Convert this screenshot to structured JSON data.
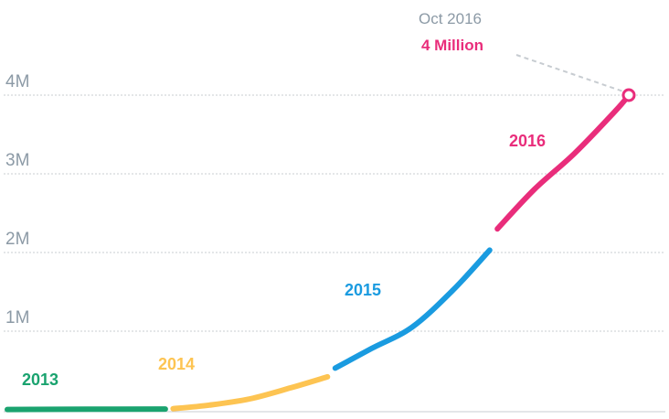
{
  "chart_data": {
    "type": "line",
    "title": "",
    "xlabel": "",
    "ylabel": "",
    "ylim": [
      0,
      4500000
    ],
    "y_ticks": [
      {
        "value": 1000000,
        "label": "1M"
      },
      {
        "value": 2000000,
        "label": "2M"
      },
      {
        "value": 3000000,
        "label": "3M"
      },
      {
        "value": 4000000,
        "label": "4M"
      }
    ],
    "grid": true,
    "legend": "none",
    "series": [
      {
        "name": "2013",
        "color": "#1aa36f",
        "points": [
          [
            "2013-01-01",
            5000
          ],
          [
            "2013-07-01",
            8000
          ],
          [
            "2013-12-31",
            10000
          ]
        ]
      },
      {
        "name": "2014",
        "color": "#fdc452",
        "points": [
          [
            "2014-01-01",
            15000
          ],
          [
            "2014-04-01",
            60000
          ],
          [
            "2014-07-01",
            140000
          ],
          [
            "2014-10-01",
            280000
          ],
          [
            "2014-12-31",
            420000
          ]
        ]
      },
      {
        "name": "2015",
        "color": "#1a9be0",
        "points": [
          [
            "2015-01-01",
            530000
          ],
          [
            "2015-04-01",
            780000
          ],
          [
            "2015-07-01",
            1050000
          ],
          [
            "2015-10-01",
            1520000
          ],
          [
            "2015-12-31",
            2030000
          ]
        ]
      },
      {
        "name": "2016",
        "color": "#e92d7b",
        "points": [
          [
            "2016-01-01",
            2300000
          ],
          [
            "2016-04-01",
            2800000
          ],
          [
            "2016-07-01",
            3260000
          ],
          [
            "2016-10-01",
            3800000
          ],
          [
            "2016-10-31",
            4000000
          ]
        ]
      }
    ],
    "annotation": {
      "date_label": "Oct 2016",
      "value_label": "4 Million",
      "x": "2016-10-31",
      "y": 4000000,
      "color": "#e92d7b"
    }
  }
}
